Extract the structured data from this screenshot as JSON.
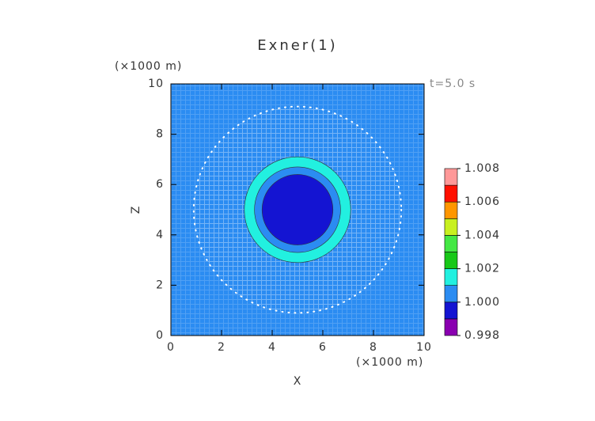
{
  "chart_data": {
    "type": "contour",
    "title": "Exner(1)",
    "y_unit": "(×1000 m)",
    "x_unit": "(×1000 m)",
    "time_label": "t=5.0 s",
    "xlabel": "X",
    "ylabel": "Z",
    "xlim": [
      0,
      10
    ],
    "ylim": [
      0,
      10
    ],
    "xticks": [
      0,
      2,
      4,
      6,
      8,
      10
    ],
    "yticks": [
      0,
      2,
      4,
      6,
      8,
      10
    ],
    "background_value": 1.0005,
    "regions": [
      {
        "cx": 5,
        "cz": 5,
        "r": 4.1,
        "value": 1.0005,
        "mesh": true
      },
      {
        "cx": 5,
        "cz": 5,
        "r": 2.1,
        "value": 1.0015,
        "mesh": false
      },
      {
        "cx": 5,
        "cz": 5,
        "r": 1.7,
        "value": 1.0005,
        "mesh": false
      },
      {
        "cx": 5,
        "cz": 5,
        "r": 1.4,
        "value": 0.9995,
        "mesh": false
      }
    ],
    "colorbar": {
      "levels": [
        0.998,
        0.999,
        1.0,
        1.001,
        1.002,
        1.003,
        1.004,
        1.005,
        1.006,
        1.007,
        1.008
      ],
      "colors": [
        "#8a00b0",
        "#1414d2",
        "#2b8cf2",
        "#22f0e0",
        "#18c818",
        "#44e844",
        "#c8f020",
        "#ff9600",
        "#ff1000",
        "#ff9898"
      ],
      "ticks": [
        0.998,
        {
          "value": 1.0,
          "label": "1.000"
        },
        1.002,
        1.004,
        1.006,
        1.008
      ]
    }
  }
}
